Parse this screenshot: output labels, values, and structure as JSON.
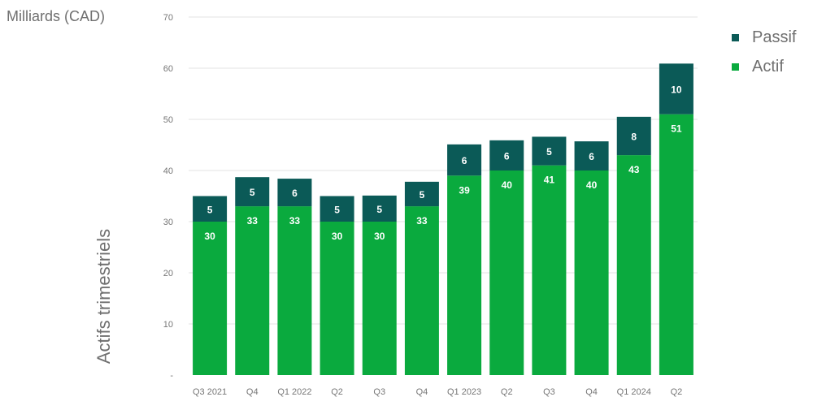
{
  "unit_label": "Milliards (CAD)",
  "y_title": "Actifs trimestriels",
  "colors": {
    "actif": "#0aaa3e",
    "passif": "#0b5a57",
    "grid": "#e3e3e3"
  },
  "chart_data": {
    "type": "bar",
    "stacked": true,
    "categories": [
      "Q3 2021",
      "Q4",
      "Q1 2022",
      "Q2",
      "Q3",
      "Q4",
      "Q1 2023",
      "Q2",
      "Q3",
      "Q4",
      "Q1 2024",
      "Q2"
    ],
    "series": [
      {
        "name": "Actif",
        "values": [
          30,
          33,
          33,
          30,
          30,
          33,
          39,
          40,
          41,
          40,
          43,
          51
        ]
      },
      {
        "name": "Passif",
        "values": [
          5,
          5,
          6,
          5,
          5,
          5,
          6,
          6,
          5,
          6,
          8,
          10
        ]
      }
    ],
    "totals": [
      35,
      38.7,
      38.4,
      35,
      35.1,
      37.8,
      45.1,
      45.9,
      46.6,
      45.7,
      50.5,
      60.9
    ],
    "ylim": [
      0,
      70
    ],
    "yticks": [
      "-",
      "10",
      "20",
      "30",
      "40",
      "50",
      "60",
      "70"
    ],
    "ylabel": "Actifs trimestriels",
    "legend": [
      "Passif",
      "Actif"
    ],
    "legend_position": "top-right",
    "grid": true
  }
}
